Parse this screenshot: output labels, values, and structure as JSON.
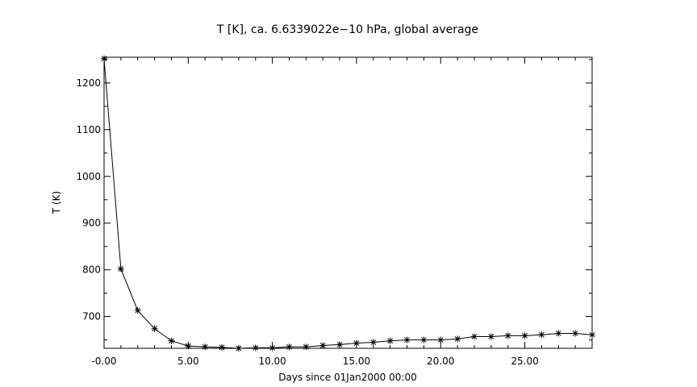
{
  "chart_data": {
    "type": "line",
    "title": "T [K], ca. 6.6339022e−10 hPa, global average",
    "xlabel": "Days since 01Jan2000 00:00",
    "ylabel": "T (K)",
    "xlim": [
      0,
      29
    ],
    "ylim": [
      632,
      1255
    ],
    "grid": false,
    "marker": "asterisk",
    "color": "#000000",
    "x_ticks": [
      0,
      5,
      10,
      15,
      20,
      25
    ],
    "x_tick_labels": [
      "-0.00",
      "5.00",
      "10.00",
      "15.00",
      "20.00",
      "25.00"
    ],
    "y_ticks": [
      700,
      800,
      900,
      1000,
      1100,
      1200
    ],
    "y_tick_labels": [
      "700",
      "800",
      "900",
      "1000",
      "1100",
      "1200"
    ],
    "series": [
      {
        "x": [
          0,
          1,
          2,
          3,
          4,
          5,
          6,
          7,
          8,
          9,
          10,
          11,
          12,
          13,
          14,
          15,
          16,
          17,
          18,
          19,
          20,
          21,
          22,
          23,
          24,
          25,
          26,
          27,
          28,
          29
        ],
        "y": [
          1252,
          802,
          713,
          674,
          648,
          637,
          635,
          634,
          632,
          633,
          633,
          635,
          635,
          638,
          640,
          643,
          645,
          648,
          650,
          650,
          650,
          652,
          657,
          657,
          659,
          659,
          661,
          664,
          664,
          661
        ]
      }
    ]
  }
}
